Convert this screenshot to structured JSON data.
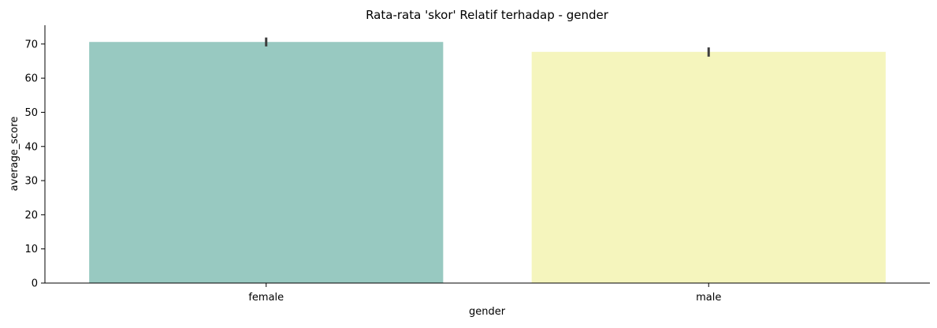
{
  "chart_data": {
    "type": "bar",
    "title": "Rata-rata 'skor' Relatif terhadap - gender",
    "xlabel": "gender",
    "ylabel": "average_score",
    "categories": [
      "female",
      "male"
    ],
    "values": [
      70.6,
      67.7
    ],
    "error_bars": [
      [
        69.3,
        71.9
      ],
      [
        66.3,
        69.0
      ]
    ],
    "colors": [
      "#98c9c1",
      "#f5f5bd"
    ],
    "ylim": [
      0,
      75.5
    ],
    "yticks": [
      0,
      10,
      20,
      30,
      40,
      50,
      60,
      70
    ],
    "grid": false
  }
}
